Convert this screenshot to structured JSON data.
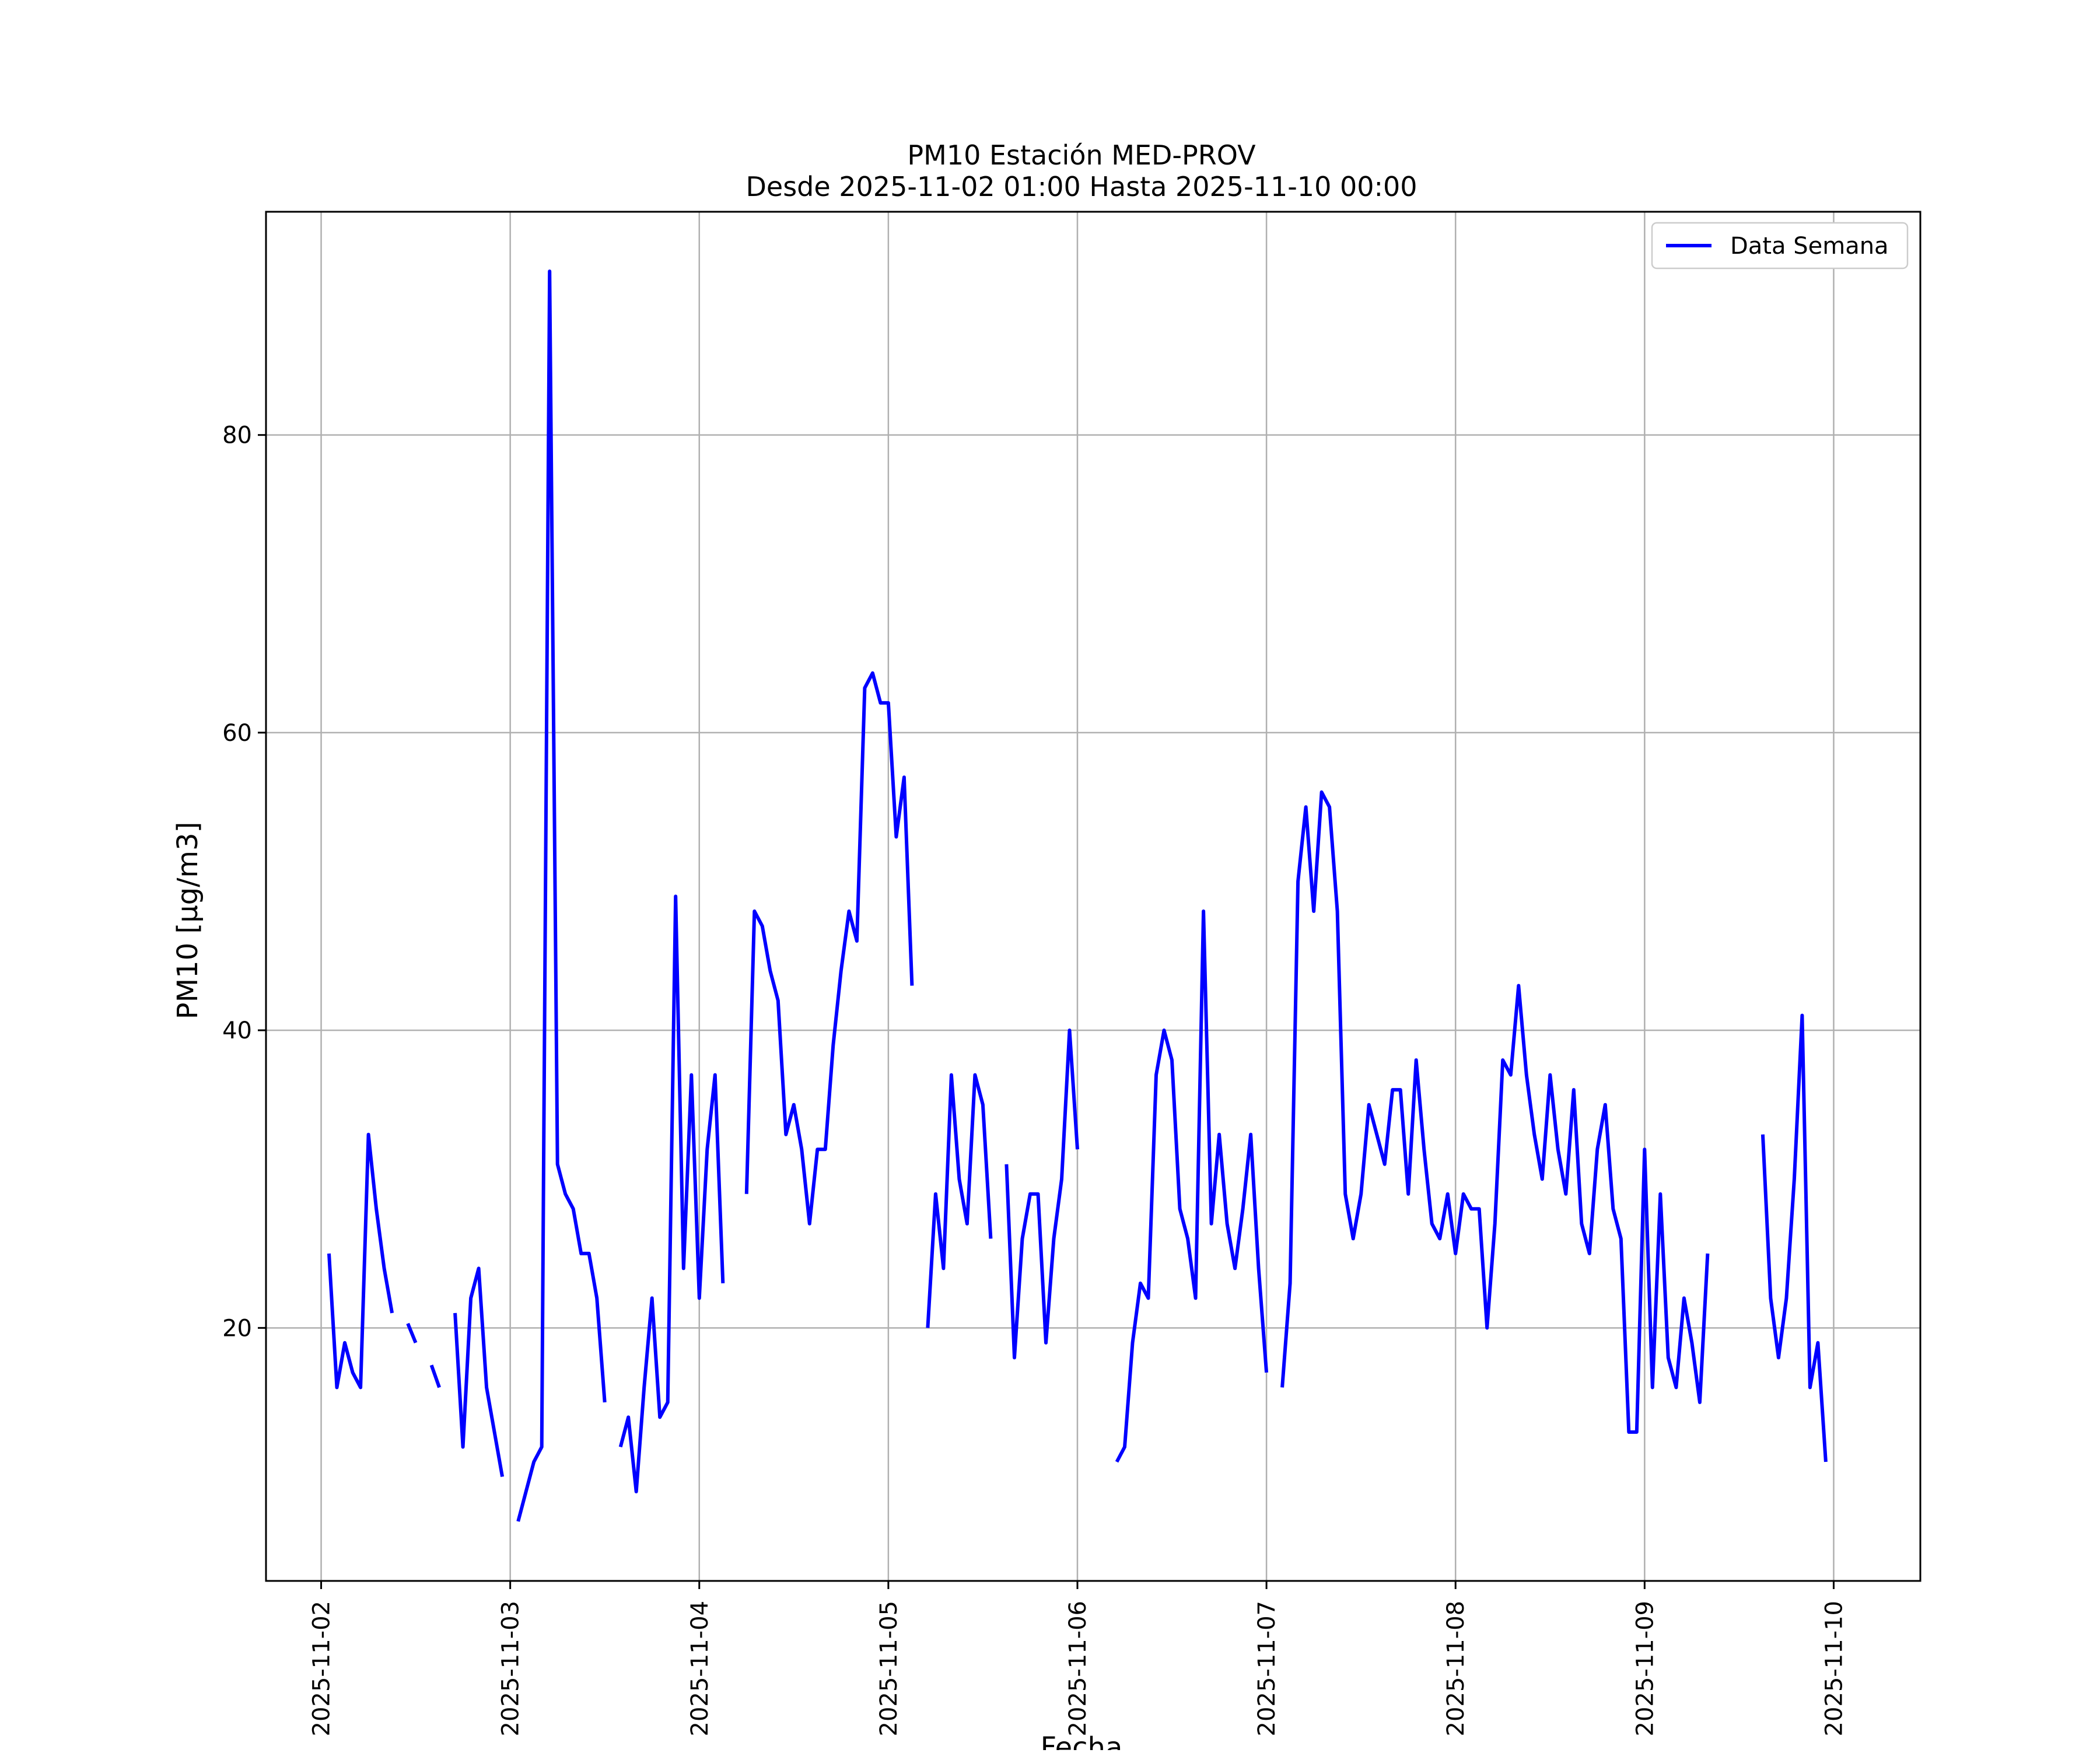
{
  "chart_data": {
    "type": "line",
    "title": "PM10 Estación MED-PROV",
    "subtitle": "Desde 2025-11-02 01:00 Hasta 2025-11-10 00:00",
    "xlabel": "Fecha",
    "ylabel": "PM10 [μg/m3]",
    "x_tick_labels": [
      "2025-11-02",
      "2025-11-03",
      "2025-11-04",
      "2025-11-05",
      "2025-11-06",
      "2025-11-07",
      "2025-11-08",
      "2025-11-09",
      "2025-11-10"
    ],
    "y_ticks": [
      20,
      40,
      60,
      80
    ],
    "ylim": [
      3,
      95
    ],
    "xlim": [
      "2025-11-01 17:00",
      "2025-11-10 11:00"
    ],
    "grid": true,
    "legend_position": "top-right",
    "colors": {
      "series": "#0000ff",
      "grid": "#b0b0b0",
      "frame": "#000000"
    },
    "series": [
      {
        "name": "Data Semana",
        "segments": [
          [
            [
              "2025-11-02 01:00",
              25
            ],
            [
              "2025-11-02 02:00",
              16
            ],
            [
              "2025-11-02 03:00",
              19
            ],
            [
              "2025-11-02 04:00",
              17
            ],
            [
              "2025-11-02 05:00",
              16
            ],
            [
              "2025-11-02 06:00",
              33
            ],
            [
              "2025-11-02 07:00",
              28
            ],
            [
              "2025-11-02 08:00",
              24
            ],
            [
              "2025-11-02 09:00",
              21
            ]
          ],
          [
            [
              "2025-11-02 11:00",
              20.3
            ],
            [
              "2025-11-02 12:00",
              19
            ]
          ],
          [
            [
              "2025-11-02 14:00",
              17.5
            ],
            [
              "2025-11-02 15:00",
              16
            ]
          ],
          [
            [
              "2025-11-02 17:00",
              21
            ],
            [
              "2025-11-02 18:00",
              12
            ],
            [
              "2025-11-02 19:00",
              22
            ],
            [
              "2025-11-02 20:00",
              24
            ],
            [
              "2025-11-02 21:00",
              16
            ],
            [
              "2025-11-02 22:00",
              13
            ],
            [
              "2025-11-02 23:00",
              10
            ]
          ],
          [
            [
              "2025-11-03 01:00",
              7
            ],
            [
              "2025-11-03 02:00",
              9
            ],
            [
              "2025-11-03 03:00",
              11
            ],
            [
              "2025-11-03 04:00",
              12
            ],
            [
              "2025-11-03 05:00",
              91
            ],
            [
              "2025-11-03 06:00",
              31
            ],
            [
              "2025-11-03 07:00",
              29
            ],
            [
              "2025-11-03 08:00",
              28
            ],
            [
              "2025-11-03 09:00",
              25
            ],
            [
              "2025-11-03 10:00",
              25
            ],
            [
              "2025-11-03 11:00",
              22
            ],
            [
              "2025-11-03 12:00",
              15
            ]
          ],
          [
            [
              "2025-11-03 14:00",
              12
            ],
            [
              "2025-11-03 15:00",
              14
            ],
            [
              "2025-11-03 16:00",
              9
            ],
            [
              "2025-11-03 17:00",
              16
            ],
            [
              "2025-11-03 18:00",
              22
            ],
            [
              "2025-11-03 19:00",
              14
            ],
            [
              "2025-11-03 20:00",
              15
            ],
            [
              "2025-11-03 21:00",
              49
            ],
            [
              "2025-11-03 22:00",
              24
            ],
            [
              "2025-11-03 23:00",
              37
            ],
            [
              "2025-11-04 00:00",
              22
            ],
            [
              "2025-11-04 01:00",
              32
            ],
            [
              "2025-11-04 02:00",
              37
            ],
            [
              "2025-11-04 03:00",
              23
            ]
          ],
          [
            [
              "2025-11-04 06:00",
              29
            ],
            [
              "2025-11-04 07:00",
              48
            ],
            [
              "2025-11-04 08:00",
              47
            ],
            [
              "2025-11-04 09:00",
              44
            ],
            [
              "2025-11-04 10:00",
              42
            ],
            [
              "2025-11-04 11:00",
              33
            ],
            [
              "2025-11-04 12:00",
              35
            ],
            [
              "2025-11-04 13:00",
              32
            ],
            [
              "2025-11-04 14:00",
              27
            ],
            [
              "2025-11-04 15:00",
              32
            ],
            [
              "2025-11-04 16:00",
              32
            ],
            [
              "2025-11-04 17:00",
              39
            ],
            [
              "2025-11-04 18:00",
              44
            ],
            [
              "2025-11-04 19:00",
              48
            ],
            [
              "2025-11-04 20:00",
              46
            ],
            [
              "2025-11-04 21:00",
              63
            ],
            [
              "2025-11-04 22:00",
              64
            ],
            [
              "2025-11-04 23:00",
              62
            ],
            [
              "2025-11-05 00:00",
              62
            ],
            [
              "2025-11-05 01:00",
              53
            ],
            [
              "2025-11-05 02:00",
              57
            ],
            [
              "2025-11-05 03:00",
              43
            ]
          ],
          [
            [
              "2025-11-05 05:00",
              20
            ],
            [
              "2025-11-05 06:00",
              29
            ],
            [
              "2025-11-05 07:00",
              24
            ],
            [
              "2025-11-05 08:00",
              37
            ],
            [
              "2025-11-05 09:00",
              30
            ],
            [
              "2025-11-05 10:00",
              27
            ],
            [
              "2025-11-05 11:00",
              37
            ],
            [
              "2025-11-05 12:00",
              35
            ],
            [
              "2025-11-05 13:00",
              26
            ]
          ],
          [
            [
              "2025-11-05 15:00",
              31
            ],
            [
              "2025-11-05 16:00",
              18
            ],
            [
              "2025-11-05 17:00",
              26
            ],
            [
              "2025-11-05 18:00",
              29
            ],
            [
              "2025-11-05 19:00",
              29
            ],
            [
              "2025-11-05 20:00",
              19
            ],
            [
              "2025-11-05 21:00",
              26
            ],
            [
              "2025-11-05 22:00",
              30
            ],
            [
              "2025-11-05 23:00",
              40
            ],
            [
              "2025-11-06 00:00",
              32
            ]
          ],
          [
            [
              "2025-11-06 05:00",
              11
            ],
            [
              "2025-11-06 06:00",
              12
            ],
            [
              "2025-11-06 07:00",
              19
            ],
            [
              "2025-11-06 08:00",
              23
            ],
            [
              "2025-11-06 09:00",
              22
            ],
            [
              "2025-11-06 10:00",
              37
            ],
            [
              "2025-11-06 11:00",
              40
            ],
            [
              "2025-11-06 12:00",
              38
            ],
            [
              "2025-11-06 13:00",
              28
            ],
            [
              "2025-11-06 14:00",
              26
            ],
            [
              "2025-11-06 15:00",
              22
            ],
            [
              "2025-11-06 16:00",
              48
            ],
            [
              "2025-11-06 17:00",
              27
            ],
            [
              "2025-11-06 18:00",
              33
            ],
            [
              "2025-11-06 19:00",
              27
            ],
            [
              "2025-11-06 20:00",
              24
            ],
            [
              "2025-11-06 21:00",
              28
            ],
            [
              "2025-11-06 22:00",
              33
            ],
            [
              "2025-11-06 23:00",
              24
            ],
            [
              "2025-11-07 00:00",
              17
            ]
          ],
          [
            [
              "2025-11-07 02:00",
              16
            ],
            [
              "2025-11-07 03:00",
              23
            ],
            [
              "2025-11-07 04:00",
              50
            ],
            [
              "2025-11-07 05:00",
              55
            ],
            [
              "2025-11-07 06:00",
              48
            ],
            [
              "2025-11-07 07:00",
              56
            ],
            [
              "2025-11-07 08:00",
              55
            ],
            [
              "2025-11-07 09:00",
              48
            ],
            [
              "2025-11-07 10:00",
              29
            ],
            [
              "2025-11-07 11:00",
              26
            ],
            [
              "2025-11-07 12:00",
              29
            ],
            [
              "2025-11-07 13:00",
              35
            ],
            [
              "2025-11-07 14:00",
              33
            ],
            [
              "2025-11-07 15:00",
              31
            ],
            [
              "2025-11-07 16:00",
              36
            ],
            [
              "2025-11-07 17:00",
              36
            ],
            [
              "2025-11-07 18:00",
              29
            ],
            [
              "2025-11-07 19:00",
              38
            ],
            [
              "2025-11-07 20:00",
              32
            ],
            [
              "2025-11-07 21:00",
              27
            ],
            [
              "2025-11-07 22:00",
              26
            ],
            [
              "2025-11-07 23:00",
              29
            ],
            [
              "2025-11-08 00:00",
              25
            ],
            [
              "2025-11-08 01:00",
              29
            ],
            [
              "2025-11-08 02:00",
              28
            ],
            [
              "2025-11-08 03:00",
              28
            ],
            [
              "2025-11-08 04:00",
              20
            ],
            [
              "2025-11-08 05:00",
              27
            ],
            [
              "2025-11-08 06:00",
              38
            ],
            [
              "2025-11-08 07:00",
              37
            ],
            [
              "2025-11-08 08:00",
              43
            ],
            [
              "2025-11-08 09:00",
              37
            ],
            [
              "2025-11-08 10:00",
              33
            ],
            [
              "2025-11-08 11:00",
              30
            ],
            [
              "2025-11-08 12:00",
              37
            ],
            [
              "2025-11-08 13:00",
              32
            ],
            [
              "2025-11-08 14:00",
              29
            ],
            [
              "2025-11-08 15:00",
              36
            ],
            [
              "2025-11-08 16:00",
              27
            ],
            [
              "2025-11-08 17:00",
              25
            ],
            [
              "2025-11-08 18:00",
              32
            ],
            [
              "2025-11-08 19:00",
              35
            ],
            [
              "2025-11-08 20:00",
              28
            ],
            [
              "2025-11-08 21:00",
              26
            ],
            [
              "2025-11-08 22:00",
              13
            ],
            [
              "2025-11-08 23:00",
              13
            ],
            [
              "2025-11-09 00:00",
              32
            ],
            [
              "2025-11-09 01:00",
              16
            ],
            [
              "2025-11-09 02:00",
              29
            ],
            [
              "2025-11-09 03:00",
              18
            ],
            [
              "2025-11-09 04:00",
              16
            ],
            [
              "2025-11-09 05:00",
              22
            ],
            [
              "2025-11-09 06:00",
              19
            ],
            [
              "2025-11-09 07:00",
              15
            ],
            [
              "2025-11-09 08:00",
              25
            ]
          ],
          [
            [
              "2025-11-09 15:00",
              33
            ],
            [
              "2025-11-09 16:00",
              22
            ],
            [
              "2025-11-09 17:00",
              18
            ],
            [
              "2025-11-09 18:00",
              22
            ],
            [
              "2025-11-09 19:00",
              30
            ],
            [
              "2025-11-09 20:00",
              41
            ],
            [
              "2025-11-09 21:00",
              16
            ],
            [
              "2025-11-09 22:00",
              19
            ],
            [
              "2025-11-09 23:00",
              11
            ]
          ]
        ]
      }
    ]
  }
}
